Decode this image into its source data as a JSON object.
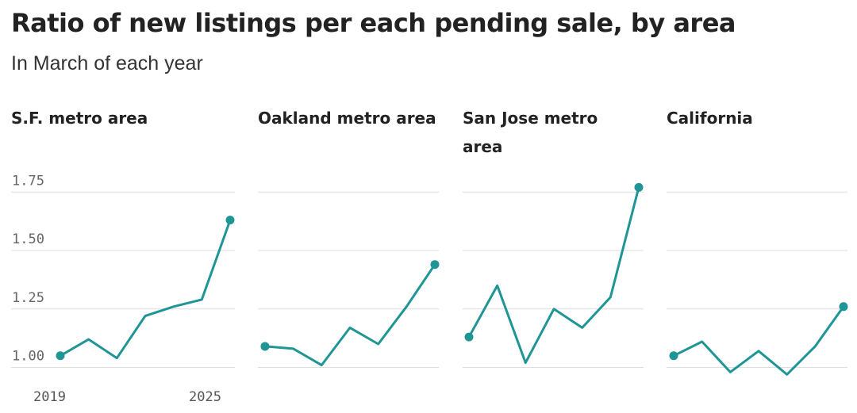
{
  "header": {
    "title": "Ratio of new listings per each pending sale, by area",
    "subtitle": "In March of each year"
  },
  "colors": {
    "line": "#1f9595",
    "grid": "#dddddd",
    "text": "#222222"
  },
  "chart_data": {
    "type": "line",
    "ylim": [
      0.97,
      1.8
    ],
    "y_ticks": [
      "1.00",
      "1.25",
      "1.50",
      "1.75"
    ],
    "x_tick_labels": [
      "2019",
      "2025"
    ],
    "x": [
      2019,
      2020,
      2021,
      2022,
      2023,
      2024,
      2025
    ],
    "grid": true,
    "panels": [
      {
        "title": "S.F. metro area",
        "values": [
          1.05,
          1.12,
          1.04,
          1.22,
          1.26,
          1.29,
          1.63
        ]
      },
      {
        "title": "Oakland metro area",
        "values": [
          1.09,
          1.08,
          1.01,
          1.17,
          1.1,
          1.26,
          1.44
        ]
      },
      {
        "title": "San Jose metro area",
        "values": [
          1.13,
          1.35,
          1.02,
          1.25,
          1.17,
          1.3,
          1.77
        ]
      },
      {
        "title": "California",
        "values": [
          1.05,
          1.11,
          0.98,
          1.07,
          0.97,
          1.09,
          1.26
        ]
      }
    ]
  }
}
